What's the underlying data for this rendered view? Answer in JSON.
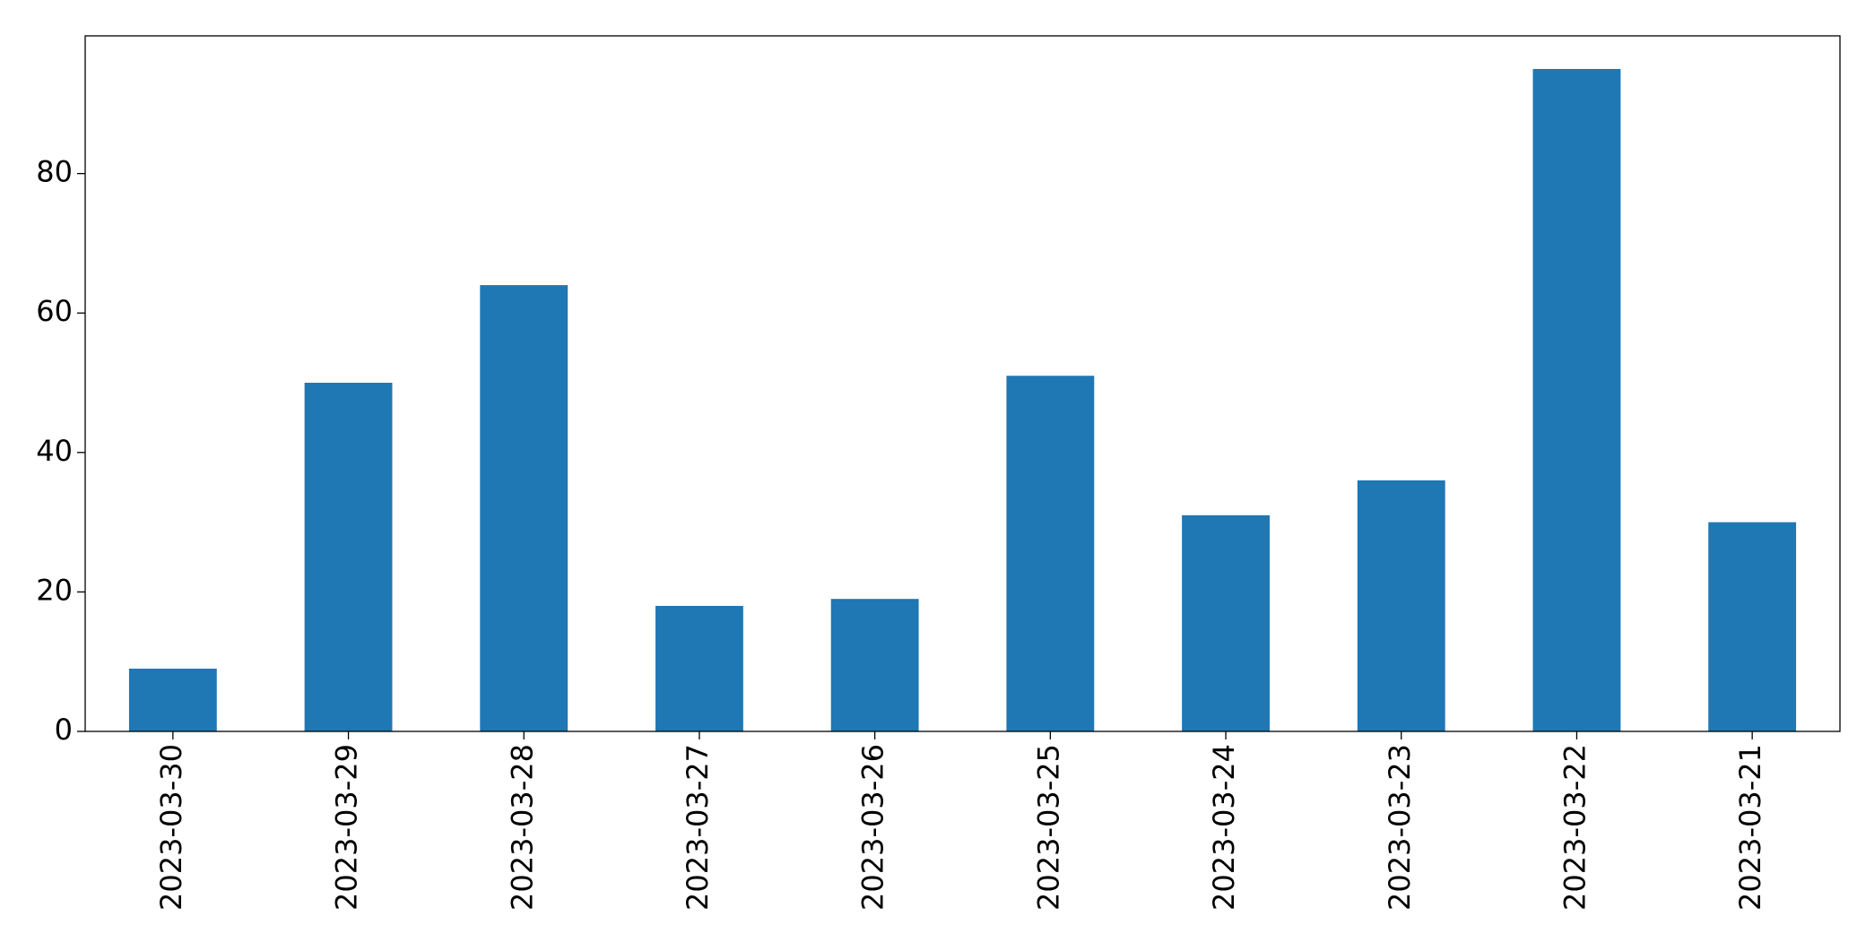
{
  "chart_data": {
    "type": "bar",
    "categories": [
      "2023-03-30",
      "2023-03-29",
      "2023-03-28",
      "2023-03-27",
      "2023-03-26",
      "2023-03-25",
      "2023-03-24",
      "2023-03-23",
      "2023-03-22",
      "2023-03-21"
    ],
    "values": [
      9,
      50,
      64,
      18,
      19,
      51,
      31,
      36,
      95,
      30
    ],
    "color": "#1f77b4",
    "ylim": [
      0,
      99.75
    ],
    "yticks": [
      0,
      20,
      40,
      60,
      80
    ],
    "grid": false
  }
}
